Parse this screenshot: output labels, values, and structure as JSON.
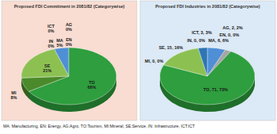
{
  "chart_data": [
    {
      "type": "pie",
      "title": "Proposed FDI Commitment in 2081/82 (Categorywise)",
      "categories": [
        "MA",
        "EN",
        "AG",
        "TO",
        "MI",
        "SE",
        "IN",
        "ICT"
      ],
      "values": [
        5,
        0,
        0,
        66,
        8,
        21,
        0,
        0
      ],
      "value_labels": [
        "5%",
        "0%",
        "0%",
        "66%",
        "8%",
        "21%",
        "0%",
        "0%"
      ],
      "colors": [
        "#4f8fd6",
        "#7f7f7f",
        "#a5a5a5",
        "#2e9e3e",
        "#4a8a2a",
        "#8cc152",
        "#5b9bd5",
        "#2f75b5"
      ],
      "data_labels": true,
      "annotations": [
        "MA: Manufacturing, EN: Energy, AG:Agro, TO:Tourism, MI:Mineral, SE:Service, IN: Infrastructure, ICT:ICT"
      ]
    },
    {
      "type": "pie",
      "title": "Proposed FDI Industries in 2081/82 (Categorywise)",
      "categories": [
        "MA",
        "EN",
        "AG",
        "TO",
        "MI",
        "SE",
        "IN",
        "ICT"
      ],
      "values": [
        6,
        0,
        2,
        71,
        0,
        15,
        0,
        3
      ],
      "value_labels": [
        "6, 6%",
        "0, 0%",
        "2, 2%",
        "71, 73%",
        "0, 0%",
        "15, 16%",
        "0, 0%",
        "3, 3%"
      ],
      "colors": [
        "#4f8fd6",
        "#7f7f7f",
        "#a5a5a5",
        "#2e9e3e",
        "#4a8a2a",
        "#8cc152",
        "#5b9bd5",
        "#2f75b5"
      ],
      "data_labels": true
    }
  ]
}
